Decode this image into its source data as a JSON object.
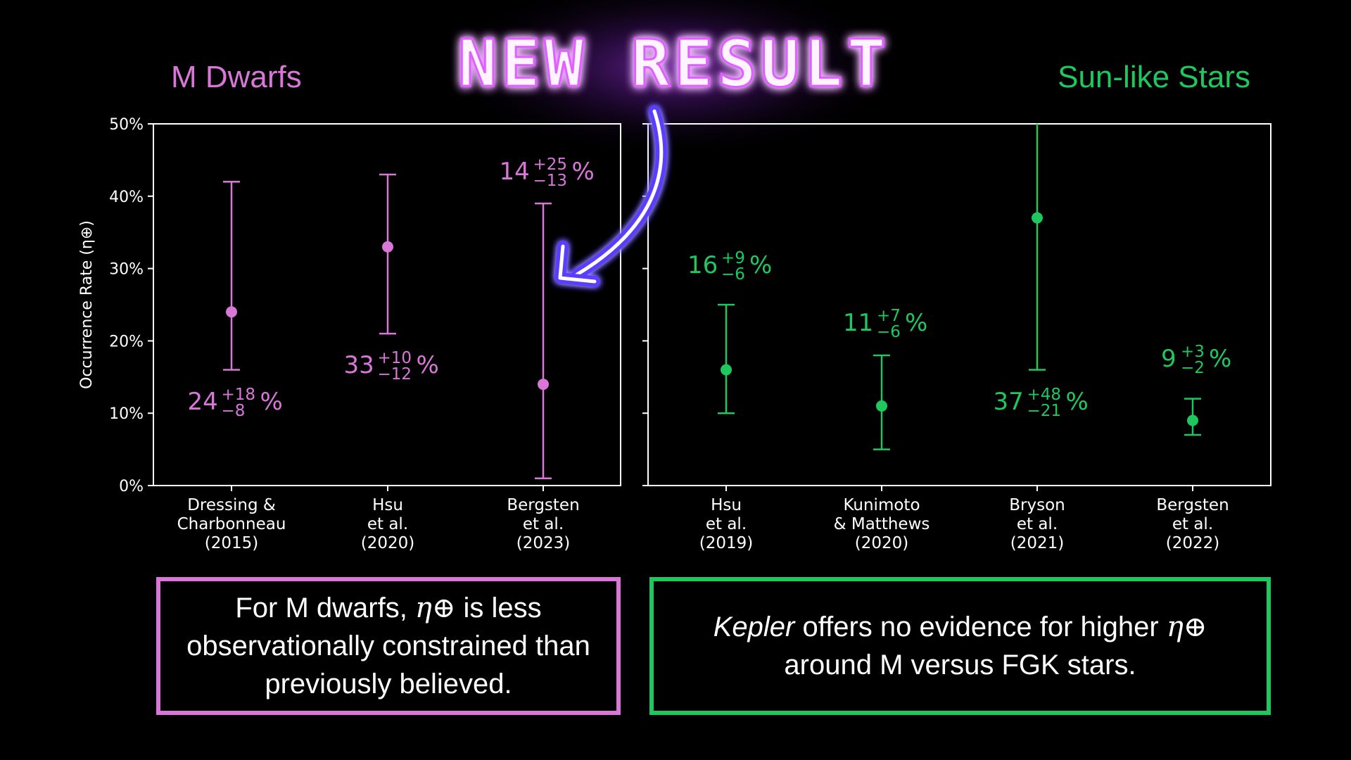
{
  "headline": "NEW RESULT",
  "panel_titles": {
    "left": "M Dwarfs",
    "right": "Sun-like Stars"
  },
  "colors": {
    "m_dwarfs": "#d877d8",
    "sun_like": "#1ec85f",
    "headline_glow": "#c040ff",
    "arrow_glow": "#6a4dff"
  },
  "chart_data": [
    {
      "type": "scatter",
      "title": "M Dwarfs",
      "ylabel": "Occurrence Rate (η⊕)",
      "ylim": [
        0,
        50
      ],
      "yticks": [
        "0%",
        "10%",
        "20%",
        "30%",
        "40%",
        "50%"
      ],
      "categories": [
        [
          "Dressing &",
          "Charbonneau",
          "(2015)"
        ],
        [
          "Hsu",
          "et al.",
          "(2020)"
        ],
        [
          "Bergsten",
          "et al.",
          "(2023)"
        ]
      ],
      "values": [
        24,
        33,
        14
      ],
      "plus": [
        18,
        10,
        25
      ],
      "minus": [
        8,
        12,
        13
      ],
      "labels": [
        {
          "main": "24",
          "up": "+18",
          "down": "−8",
          "pct": "%"
        },
        {
          "main": "33",
          "up": "+10",
          "down": "−12",
          "pct": "%"
        },
        {
          "main": "14",
          "up": "+25",
          "down": "−13",
          "pct": "%"
        }
      ]
    },
    {
      "type": "scatter",
      "title": "Sun-like Stars",
      "ylim": [
        0,
        50
      ],
      "categories": [
        [
          "Hsu",
          "et al.",
          "(2019)"
        ],
        [
          "Kunimoto",
          "& Matthews",
          "(2020)"
        ],
        [
          "Bryson",
          "et al.",
          "(2021)"
        ],
        [
          "Bergsten",
          "et al.",
          "(2022)"
        ]
      ],
      "values": [
        16,
        11,
        37,
        9
      ],
      "plus": [
        9,
        7,
        48,
        3
      ],
      "minus": [
        6,
        6,
        21,
        2
      ],
      "labels": [
        {
          "main": "16",
          "up": "+9",
          "down": "−6",
          "pct": "%"
        },
        {
          "main": "11",
          "up": "+7",
          "down": "−6",
          "pct": "%"
        },
        {
          "main": "37",
          "up": "+48",
          "down": "−21",
          "pct": "%"
        },
        {
          "main": "9",
          "up": "+3",
          "down": "−2",
          "pct": "%"
        }
      ]
    }
  ],
  "callouts": {
    "left": {
      "pre": "For M dwarfs, ",
      "eta": "η⊕",
      "post": " is less observationally constrained than previously believed."
    },
    "right": {
      "em": "Kepler",
      "post": " offers no evidence for higher ",
      "eta": "η⊕",
      "end": " around M versus FGK stars."
    }
  }
}
